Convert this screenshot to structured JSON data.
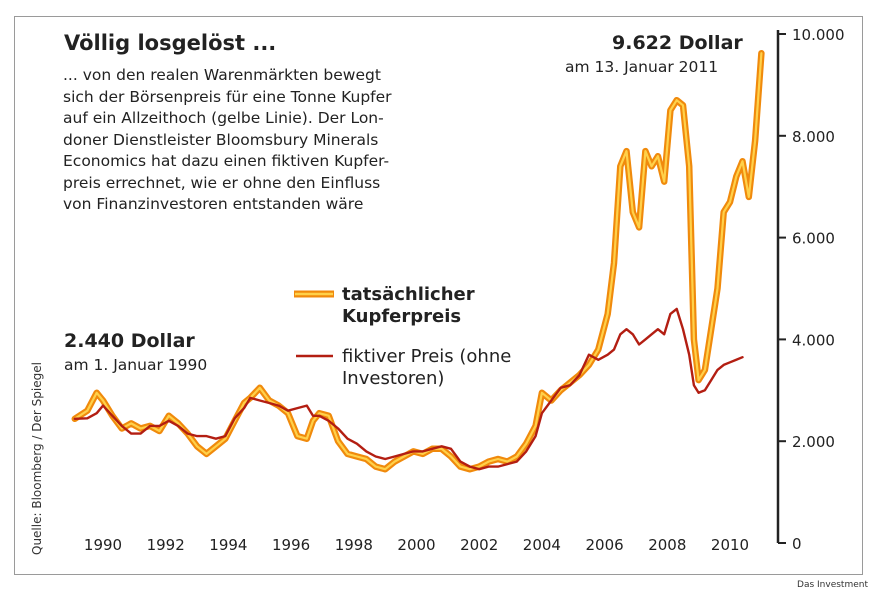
{
  "title": "Völlig losgelöst ...",
  "description_lines": [
    "... von den realen Warenmärkten bewegt",
    "sich der Börsenpreis für eine Tonne Kupfer",
    "auf ein Allzeithoch (gelbe Linie). Der Lon-",
    "doner Dienstleister Bloomsbury Minerals",
    "Economics hat dazu einen fiktiven Kupfer-",
    "preis errechnet, wie er ohne den Einfluss",
    "von Finanzinvestoren entstanden wäre"
  ],
  "annotation_end": {
    "value": "9.622 Dollar",
    "date": "am 13. Januar 2011"
  },
  "annotation_start": {
    "value": "2.440 Dollar",
    "date": "am 1. Januar 1990"
  },
  "source": "Quelle: Bloomberg / Der Spiegel",
  "credit": "Das Investment",
  "colors": {
    "actual_outer": "#f08a0c",
    "actual_inner": "#ffd14a",
    "fictive": "#b31e12",
    "axis": "#222222"
  },
  "chart_data": {
    "type": "line",
    "title": "Völlig losgelöst ...",
    "xlabel": "",
    "ylabel": "",
    "xlim": [
      1989.0,
      2011.2
    ],
    "ylim": [
      0,
      10000
    ],
    "x_ticks": [
      "1990",
      "1992",
      "1994",
      "1996",
      "1998",
      "2000",
      "2002",
      "2004",
      "2006",
      "2008",
      "2010"
    ],
    "y_ticks": [
      "0",
      "2.000",
      "4.000",
      "6.000",
      "8.000",
      "10.000"
    ],
    "y_tick_values": [
      0,
      2000,
      4000,
      6000,
      8000,
      10000
    ],
    "grid": false,
    "legend_position": "center",
    "series": [
      {
        "name": "tatsächlicher Kupferpreis",
        "x": [
          1989.1,
          1989.5,
          1989.8,
          1990.0,
          1990.3,
          1990.6,
          1990.9,
          1991.2,
          1991.5,
          1991.8,
          1992.1,
          1992.4,
          1992.7,
          1993.0,
          1993.3,
          1993.6,
          1993.9,
          1994.2,
          1994.5,
          1994.7,
          1995.0,
          1995.3,
          1995.6,
          1995.9,
          1996.2,
          1996.5,
          1996.7,
          1996.9,
          1997.2,
          1997.5,
          1997.8,
          1998.1,
          1998.4,
          1998.7,
          1999.0,
          1999.3,
          1999.6,
          1999.9,
          2000.2,
          2000.5,
          2000.8,
          2001.1,
          2001.4,
          2001.7,
          2002.0,
          2002.3,
          2002.6,
          2002.9,
          2003.2,
          2003.5,
          2003.8,
          2004.0,
          2004.3,
          2004.6,
          2004.9,
          2005.2,
          2005.5,
          2005.8,
          2006.1,
          2006.3,
          2006.5,
          2006.7,
          2006.9,
          2007.1,
          2007.3,
          2007.5,
          2007.7,
          2007.9,
          2008.1,
          2008.3,
          2008.5,
          2008.7,
          2008.85,
          2009.0,
          2009.2,
          2009.4,
          2009.6,
          2009.8,
          2010.0,
          2010.2,
          2010.4,
          2010.6,
          2010.8,
          2011.0
        ],
        "values": [
          2440,
          2600,
          2950,
          2800,
          2500,
          2250,
          2350,
          2250,
          2300,
          2200,
          2500,
          2350,
          2150,
          1900,
          1750,
          1900,
          2050,
          2400,
          2750,
          2850,
          3050,
          2800,
          2700,
          2550,
          2100,
          2050,
          2400,
          2550,
          2500,
          2000,
          1750,
          1700,
          1650,
          1500,
          1450,
          1600,
          1700,
          1800,
          1750,
          1850,
          1850,
          1700,
          1500,
          1450,
          1500,
          1600,
          1650,
          1600,
          1700,
          1950,
          2300,
          2950,
          2800,
          3000,
          3150,
          3300,
          3500,
          3800,
          4500,
          5500,
          7400,
          7700,
          6500,
          6200,
          7700,
          7400,
          7600,
          7100,
          8500,
          8700,
          8600,
          7400,
          4000,
          3200,
          3400,
          4200,
          5000,
          6500,
          6700,
          7200,
          7500,
          6800,
          7900,
          9622
        ]
      },
      {
        "name": "fiktiver Preis (ohne Investoren)",
        "x": [
          1989.1,
          1989.5,
          1989.8,
          1990.0,
          1990.3,
          1990.6,
          1990.9,
          1991.2,
          1991.5,
          1991.8,
          1992.1,
          1992.4,
          1992.7,
          1993.0,
          1993.3,
          1993.6,
          1993.9,
          1994.2,
          1994.5,
          1994.7,
          1995.0,
          1995.3,
          1995.6,
          1995.9,
          1996.2,
          1996.5,
          1996.7,
          1996.9,
          1997.2,
          1997.5,
          1997.8,
          1998.1,
          1998.4,
          1998.7,
          1999.0,
          1999.3,
          1999.6,
          1999.9,
          2000.2,
          2000.5,
          2000.8,
          2001.1,
          2001.4,
          2001.7,
          2002.0,
          2002.3,
          2002.6,
          2002.9,
          2003.2,
          2003.5,
          2003.8,
          2004.0,
          2004.3,
          2004.6,
          2004.9,
          2005.2,
          2005.5,
          2005.8,
          2006.1,
          2006.3,
          2006.5,
          2006.7,
          2006.9,
          2007.1,
          2007.3,
          2007.5,
          2007.7,
          2007.9,
          2008.1,
          2008.3,
          2008.5,
          2008.7,
          2008.85,
          2009.0,
          2009.2,
          2009.4,
          2009.6,
          2009.8,
          2010.0,
          2010.2,
          2010.4
        ],
        "values": [
          2440,
          2450,
          2550,
          2700,
          2500,
          2300,
          2150,
          2150,
          2300,
          2300,
          2400,
          2300,
          2150,
          2100,
          2100,
          2050,
          2100,
          2450,
          2650,
          2850,
          2800,
          2750,
          2700,
          2600,
          2650,
          2700,
          2500,
          2500,
          2400,
          2250,
          2050,
          1950,
          1800,
          1700,
          1650,
          1700,
          1750,
          1800,
          1800,
          1850,
          1900,
          1850,
          1600,
          1500,
          1450,
          1500,
          1500,
          1550,
          1600,
          1800,
          2100,
          2550,
          2800,
          3050,
          3100,
          3300,
          3700,
          3600,
          3700,
          3800,
          4100,
          4200,
          4100,
          3900,
          4000,
          4100,
          4200,
          4100,
          4500,
          4600,
          4200,
          3700,
          3100,
          2950,
          3000,
          3200,
          3400,
          3500,
          3550,
          3600,
          3650
        ]
      }
    ]
  }
}
